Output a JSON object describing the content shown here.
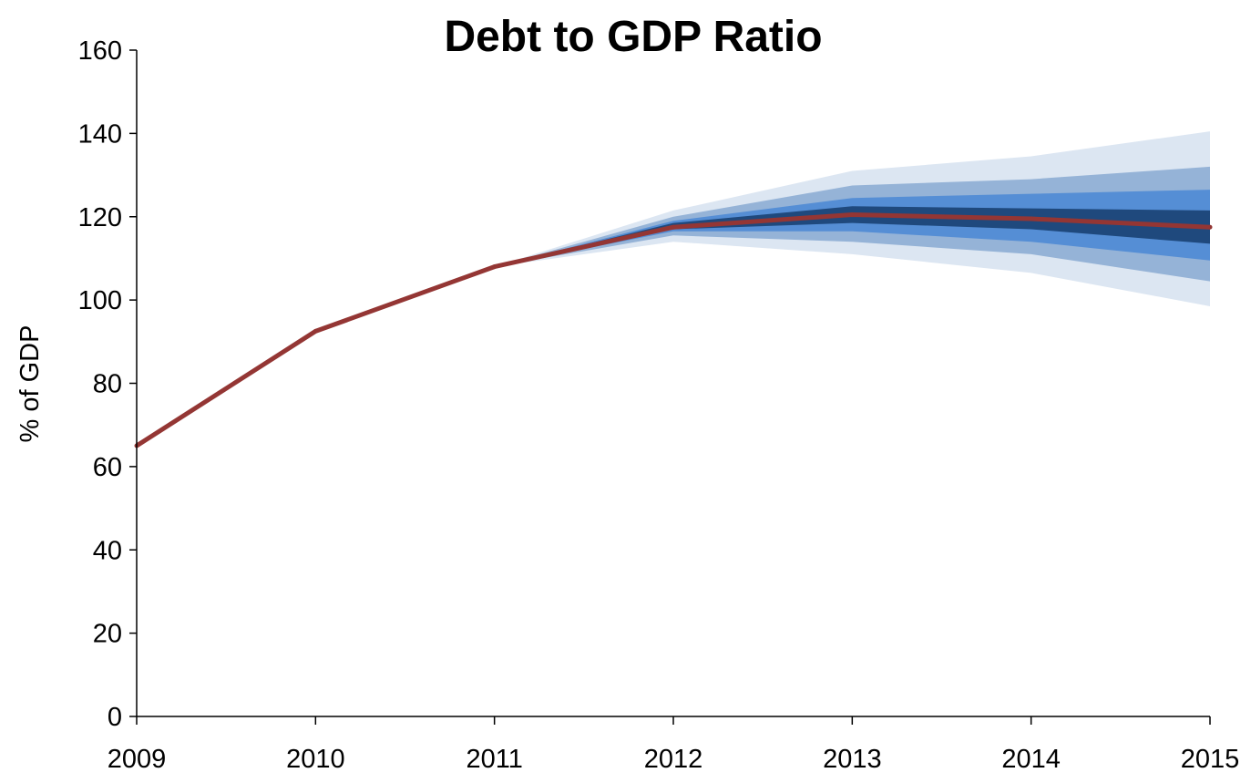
{
  "chart_data": {
    "type": "area",
    "title": "Debt to GDP Ratio",
    "xlabel": "",
    "ylabel": "% of GDP",
    "x": [
      2009,
      2010,
      2011,
      2012,
      2013,
      2014,
      2015
    ],
    "x_ticks": [
      "2009",
      "2010",
      "2011",
      "2012",
      "2013",
      "2014",
      "2015"
    ],
    "ylim": [
      0,
      160
    ],
    "y_ticks": [
      0,
      20,
      40,
      60,
      80,
      100,
      120,
      140,
      160
    ],
    "grid": false,
    "legend": "none",
    "series": [
      {
        "values": [
          65,
          92.5,
          108,
          117.5,
          120.5,
          119.5,
          117.5
        ],
        "color": "#943634"
      }
    ],
    "fan_bands": {
      "start_x": 2011,
      "x": [
        2011,
        2012,
        2013,
        2014,
        2015
      ],
      "bands": [
        {
          "color": "#dce6f2",
          "upper": [
            108,
            121.5,
            131,
            134.5,
            140.5
          ],
          "lower": [
            108,
            114,
            111,
            106.5,
            98.5
          ]
        },
        {
          "color": "#95b3d7",
          "upper": [
            108,
            120,
            127.5,
            129,
            132
          ],
          "lower": [
            108,
            115.5,
            114,
            111,
            104.5
          ]
        },
        {
          "color": "#558ed5",
          "upper": [
            108,
            119,
            124.5,
            125.5,
            126.5
          ],
          "lower": [
            108,
            116.5,
            116.5,
            114,
            109.5
          ]
        },
        {
          "color": "#1f497d",
          "upper": [
            108,
            118.5,
            122.5,
            122,
            121.5
          ],
          "lower": [
            108,
            117,
            118.5,
            117,
            113.5
          ]
        }
      ]
    }
  }
}
